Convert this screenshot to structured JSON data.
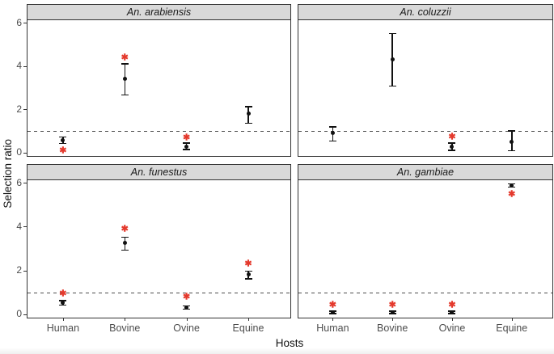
{
  "figure": {
    "colors": {
      "strip_background": "#d9d9d9",
      "panel_border": "#333333",
      "point_color": "#111111",
      "star_color": "#e4392c",
      "reference_line_color": "#4d4d4d",
      "tick_text_color": "#4d4d4d"
    }
  },
  "chart_data": {
    "type": "scatter",
    "description": "2x2 faceted point-range plot (points with 95% CI error bars); red asterisks mark significant selection ratios; dashed reference line at y = 1",
    "xlabel": "Hosts",
    "ylabel": "Selection ratio",
    "categories": [
      "Human",
      "Bovine",
      "Ovine",
      "Equine"
    ],
    "y_ticks": [
      0,
      2,
      4,
      6
    ],
    "ylim": [
      -0.16,
      6.12
    ],
    "reference_line_y": 1,
    "legend": "none",
    "grid": "off",
    "facets": [
      {
        "title": "An. arabiensis",
        "points": [
          {
            "host": "Human",
            "estimate": 0.58,
            "ci_low": 0.42,
            "ci_high": 0.72,
            "significant": true,
            "star_y": 0.07
          },
          {
            "host": "Bovine",
            "estimate": 3.4,
            "ci_low": 2.66,
            "ci_high": 4.1,
            "significant": true,
            "star_y": 4.35
          },
          {
            "host": "Ovine",
            "estimate": 0.27,
            "ci_low": 0.14,
            "ci_high": 0.43,
            "significant": true,
            "star_y": 0.68
          },
          {
            "host": "Equine",
            "estimate": 1.8,
            "ci_low": 1.35,
            "ci_high": 2.12,
            "significant": false,
            "star_y": null
          }
        ]
      },
      {
        "title": "An. coluzzii",
        "points": [
          {
            "host": "Human",
            "estimate": 0.9,
            "ci_low": 0.53,
            "ci_high": 1.18,
            "significant": false,
            "star_y": null
          },
          {
            "host": "Bovine",
            "estimate": 4.32,
            "ci_low": 3.08,
            "ci_high": 5.5,
            "significant": false,
            "star_y": null
          },
          {
            "host": "Ovine",
            "estimate": 0.27,
            "ci_low": 0.11,
            "ci_high": 0.44,
            "significant": true,
            "star_y": 0.7
          },
          {
            "host": "Equine",
            "estimate": 0.48,
            "ci_low": 0.08,
            "ci_high": 1.0,
            "significant": false,
            "star_y": null
          }
        ]
      },
      {
        "title": "An. funestus",
        "points": [
          {
            "host": "Human",
            "estimate": 0.52,
            "ci_low": 0.42,
            "ci_high": 0.61,
            "significant": true,
            "star_y": 0.92
          },
          {
            "host": "Bovine",
            "estimate": 3.25,
            "ci_low": 2.93,
            "ci_high": 3.52,
            "significant": true,
            "star_y": 3.85
          },
          {
            "host": "Ovine",
            "estimate": 0.31,
            "ci_low": 0.23,
            "ci_high": 0.38,
            "significant": true,
            "star_y": 0.76
          },
          {
            "host": "Equine",
            "estimate": 1.8,
            "ci_low": 1.62,
            "ci_high": 1.97,
            "significant": true,
            "star_y": 2.26
          }
        ]
      },
      {
        "title": "An. gambiae",
        "points": [
          {
            "host": "Human",
            "estimate": 0.08,
            "ci_low": 0.03,
            "ci_high": 0.14,
            "significant": true,
            "star_y": 0.4
          },
          {
            "host": "Bovine",
            "estimate": 0.08,
            "ci_low": 0.03,
            "ci_high": 0.14,
            "significant": true,
            "star_y": 0.4
          },
          {
            "host": "Ovine",
            "estimate": 0.08,
            "ci_low": 0.03,
            "ci_high": 0.14,
            "significant": true,
            "star_y": 0.4
          },
          {
            "host": "Equine",
            "estimate": 5.88,
            "ci_low": 5.8,
            "ci_high": 5.95,
            "significant": true,
            "star_y": 5.47
          }
        ]
      }
    ]
  }
}
